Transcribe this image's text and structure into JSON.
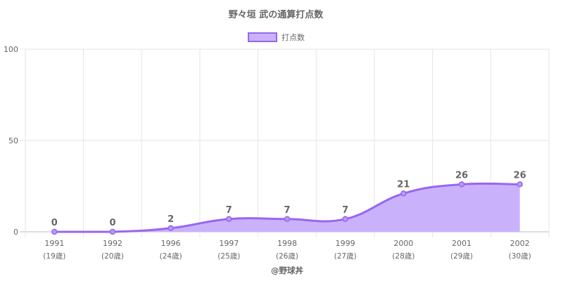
{
  "chart_data": {
    "type": "area",
    "title": "野々垣 武の通算打点数",
    "categories": [
      "1991",
      "1992",
      "1996",
      "1997",
      "1998",
      "1999",
      "2000",
      "2001",
      "2002"
    ],
    "sub_labels": [
      "(19歳)",
      "(20歳)",
      "(24歳)",
      "(25歳)",
      "(26歳)",
      "(27歳)",
      "(28歳)",
      "(29歳)",
      "(30歳)"
    ],
    "series": [
      {
        "name": "打点数",
        "values": [
          0,
          0,
          2,
          7,
          7,
          7,
          21,
          26,
          26
        ]
      }
    ],
    "data_labels": [
      "0",
      "0",
      "2",
      "7",
      "7",
      "7",
      "21",
      "26",
      "26"
    ],
    "y_ticks": [
      "0",
      "50",
      "100"
    ],
    "ylim": [
      0,
      100
    ],
    "grid": true,
    "legend_position": "top-center",
    "colors": {
      "line": "#9966ee",
      "fill": "#c9b2fb",
      "grid": "#e6e6e6",
      "text": "#666666"
    }
  },
  "footer": "@野球丼"
}
